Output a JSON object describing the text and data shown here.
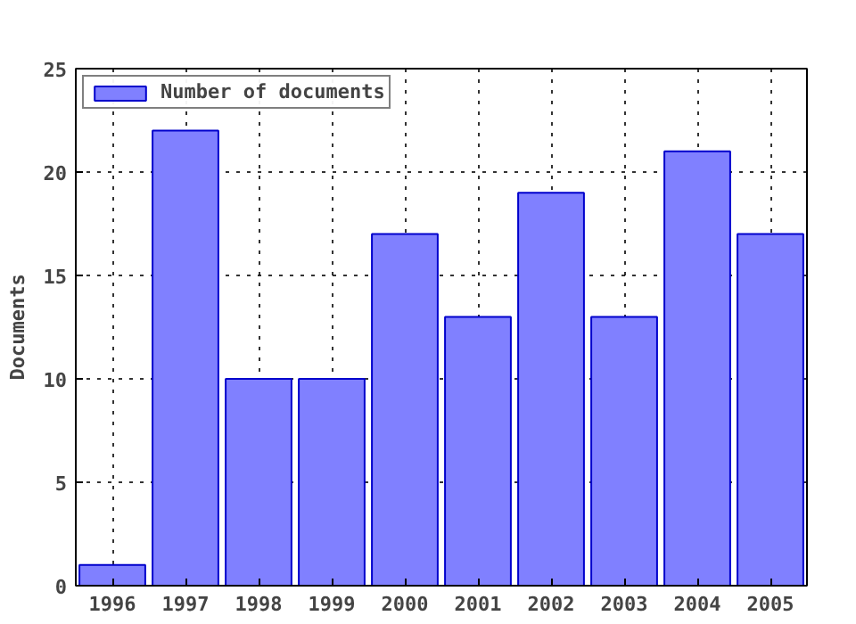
{
  "chart_data": {
    "type": "bar",
    "ylabel": "Documents",
    "x": [
      1996,
      1997,
      1998,
      1999,
      2000,
      2001,
      2002,
      2003,
      2004,
      2005
    ],
    "series": [
      {
        "name": "Number of documents",
        "color": "#8080ff",
        "values": [
          1,
          22,
          10,
          10,
          17,
          13,
          19,
          13,
          21,
          17
        ]
      }
    ],
    "xlim": [
      1995.5,
      2005.5
    ],
    "xticks": [
      1996,
      1997,
      1998,
      1999,
      2000,
      2001,
      2002,
      2003,
      2004,
      2005
    ],
    "ylim": [
      0,
      25
    ],
    "yticks": [
      0,
      5,
      10,
      15,
      20,
      25
    ],
    "grid": true,
    "legend": "top left"
  }
}
